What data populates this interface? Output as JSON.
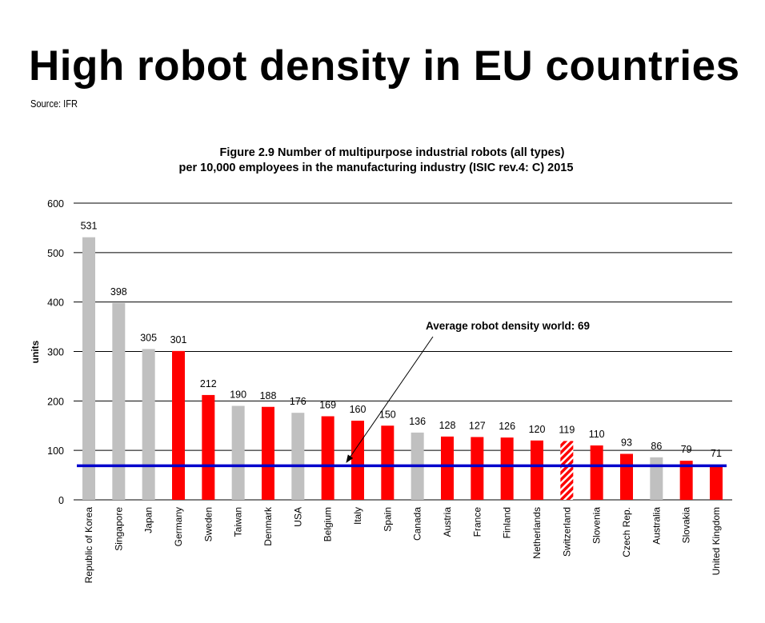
{
  "header": {
    "title": "High robot density in EU countries",
    "source": "Source: IFR"
  },
  "chart_data": {
    "type": "bar",
    "title_line1": "Figure 2.9 Number of multipurpose industrial robots (all types)",
    "title_line2": "per 10,000 employees in the manufacturing industry (ISIC rev.4: C) 2015",
    "ylabel": "units",
    "xlabel": "",
    "ylim": [
      0,
      600
    ],
    "yticks": [
      0,
      100,
      200,
      300,
      400,
      500,
      600
    ],
    "grid": true,
    "categories": [
      "Republic of Korea",
      "Singapore",
      "Japan",
      "Germany",
      "Sweden",
      "Taiwan",
      "Denmark",
      "USA",
      "Belgium",
      "Italy",
      "Spain",
      "Canada",
      "Austria",
      "France",
      "Finland",
      "Netherlands",
      "Switzerland",
      "Slovenia",
      "Czech Rep.",
      "Australia",
      "Slovakia",
      "United Kingdom"
    ],
    "values": [
      531,
      398,
      305,
      301,
      212,
      190,
      188,
      176,
      169,
      160,
      150,
      136,
      128,
      127,
      126,
      120,
      119,
      110,
      93,
      86,
      79,
      71
    ],
    "groups": [
      "other",
      "other",
      "other",
      "eu",
      "eu",
      "other",
      "eu",
      "other",
      "eu",
      "eu",
      "eu",
      "other",
      "eu",
      "eu",
      "eu",
      "eu",
      "europe-non-eu",
      "eu",
      "eu",
      "other",
      "eu",
      "eu"
    ],
    "colors": {
      "eu": "#ff0000",
      "other": "#c0c0c0",
      "europe-non-eu": "#ff0000",
      "reference": "#0000cc"
    },
    "reference_line": {
      "value": 69,
      "label": "Average robot density world: 69"
    }
  }
}
